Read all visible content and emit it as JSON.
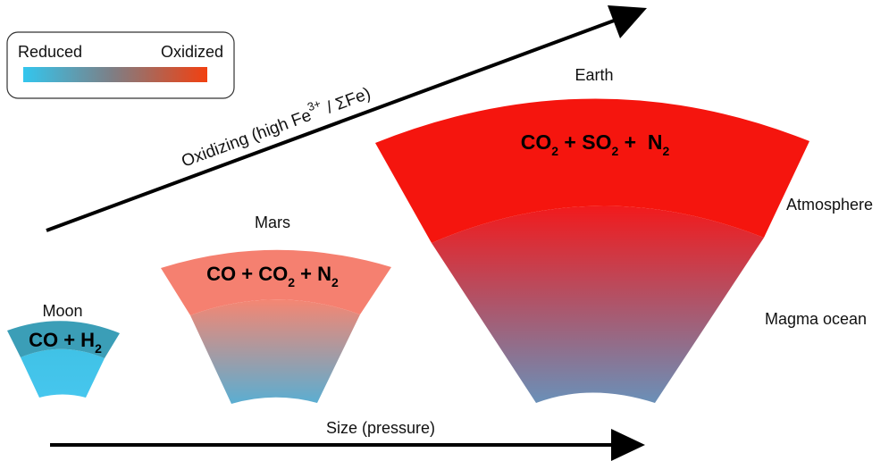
{
  "legend": {
    "reduced_label": "Reduced",
    "oxidized_label": "Oxidized",
    "colors": {
      "reduced": "#33c6ee",
      "mid": "#7d7f86",
      "oxidized": "#f24010"
    }
  },
  "oxidizing_arrow": {
    "text": "Oxidizing (high Fe",
    "superscript": "3+",
    "suffix": " / ΣFe)"
  },
  "size_arrow": {
    "label": "Size (pressure)"
  },
  "bodies": {
    "moon": {
      "name": "Moon",
      "atmosphere": {
        "p1": "CO + H",
        "s1": "2"
      },
      "colors": {
        "atmosphere": "#3b9eb7",
        "magma_top": "#40c2e6",
        "magma_bottom": "#46c6ee"
      }
    },
    "mars": {
      "name": "Mars",
      "atmosphere": {
        "p1": "CO + CO",
        "s1": "2",
        "p2": " + N",
        "s2": "2"
      },
      "colors": {
        "atmosphere": "#f58070",
        "magma_top": "#f58672",
        "magma_bottom": "#5aaed2"
      }
    },
    "earth": {
      "name": "Earth",
      "atmosphere": {
        "p1": "CO",
        "s1": "2",
        "p2": " + SO",
        "s2": "2",
        "p3": " +  N",
        "s3": "2"
      },
      "colors": {
        "atmosphere": "#f5150e",
        "magma_top": "#f21a1c",
        "magma_bottom": "#6a90b8"
      }
    }
  },
  "layer_labels": {
    "atmosphere": "Atmosphere",
    "magma_ocean": "Magma ocean"
  }
}
